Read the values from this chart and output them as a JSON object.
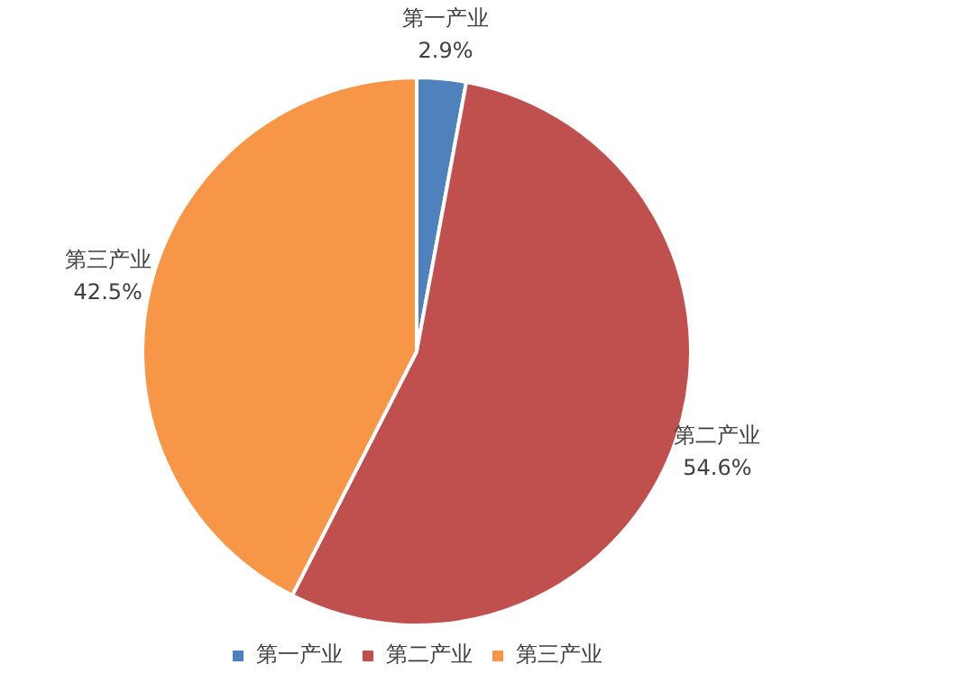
{
  "chart_data": {
    "type": "pie",
    "categories": [
      "第一产业",
      "第二产业",
      "第三产业"
    ],
    "values": [
      2.9,
      54.6,
      42.5
    ],
    "colors": [
      "#4f81bd",
      "#c0504d",
      "#f79646"
    ],
    "value_labels": [
      "2.9%",
      "54.6%",
      "42.5%"
    ],
    "legend": "bottom"
  }
}
